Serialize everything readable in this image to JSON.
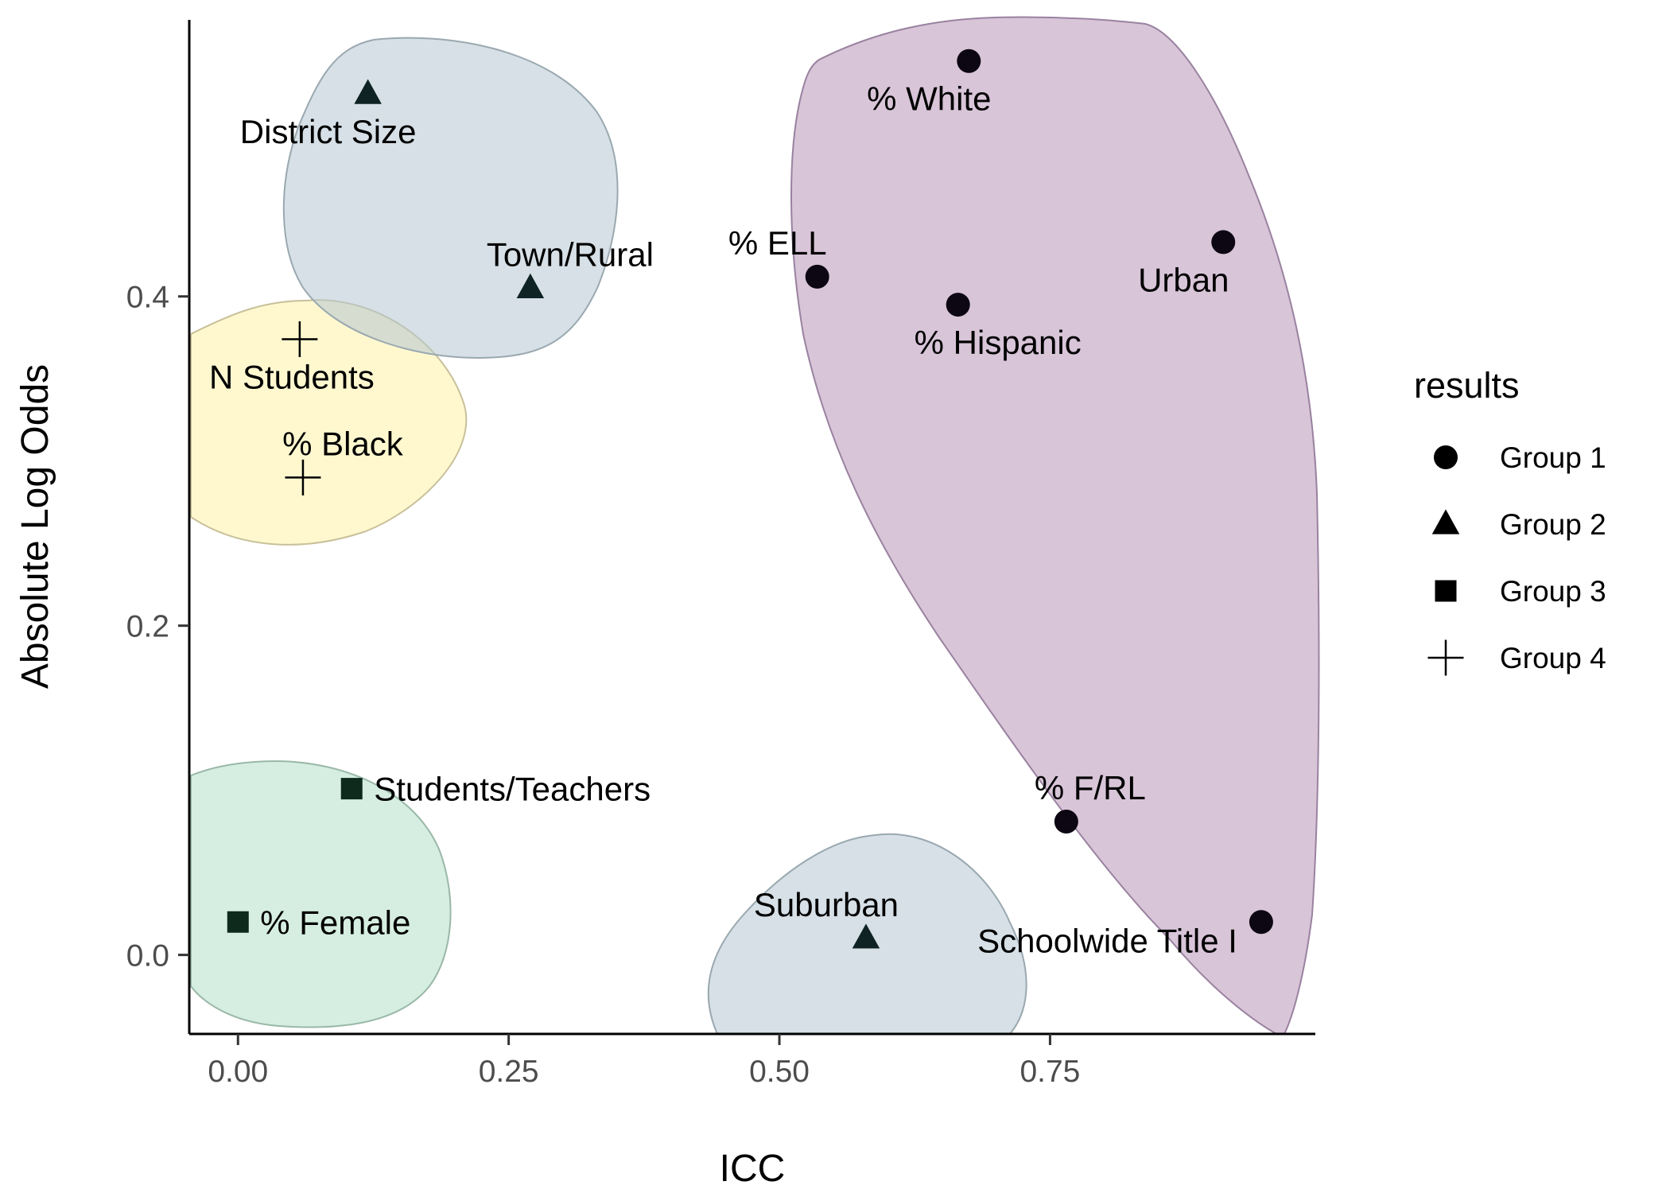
{
  "chart_data": {
    "type": "scatter",
    "xlabel": "ICC",
    "ylabel": "Absolute Log Odds",
    "xlim": [
      -0.045,
      0.995
    ],
    "ylim": [
      -0.048,
      0.568
    ],
    "x_ticks": [
      0.0,
      0.25,
      0.5,
      0.75
    ],
    "x_tick_labels": [
      "0.00",
      "0.25",
      "0.50",
      "0.75"
    ],
    "y_ticks": [
      0.0,
      0.2,
      0.4
    ],
    "y_tick_labels": [
      "0.0",
      "0.2",
      "0.4"
    ],
    "grid": false,
    "legend": {
      "title": "results",
      "placement": "right",
      "entries": [
        {
          "label": "Group 1",
          "shape": "circle"
        },
        {
          "label": "Group 2",
          "shape": "triangle"
        },
        {
          "label": "Group 3",
          "shape": "square"
        },
        {
          "label": "Group 4",
          "shape": "plus"
        }
      ]
    },
    "points": [
      {
        "label": "% White",
        "x": 0.675,
        "y": 0.543,
        "group": "Group 1"
      },
      {
        "label": "Urban",
        "x": 0.91,
        "y": 0.433,
        "group": "Group 1"
      },
      {
        "label": "% ELL",
        "x": 0.535,
        "y": 0.412,
        "group": "Group 1"
      },
      {
        "label": "% Hispanic",
        "x": 0.665,
        "y": 0.395,
        "group": "Group 1"
      },
      {
        "label": "% F/RL",
        "x": 0.765,
        "y": 0.081,
        "group": "Group 1"
      },
      {
        "label": "Schoolwide Title I",
        "x": 0.945,
        "y": 0.02,
        "group": "Group 1"
      },
      {
        "label": "District Size",
        "x": 0.12,
        "y": 0.523,
        "group": "Group 2"
      },
      {
        "label": "Town/Rural",
        "x": 0.27,
        "y": 0.405,
        "group": "Group 2"
      },
      {
        "label": "Suburban",
        "x": 0.58,
        "y": 0.01,
        "group": "Group 2"
      },
      {
        "label": "Students/Teachers",
        "x": 0.105,
        "y": 0.101,
        "group": "Group 3"
      },
      {
        "label": "% Female",
        "x": 0.0,
        "y": 0.02,
        "group": "Group 3"
      },
      {
        "label": "N Students",
        "x": 0.057,
        "y": 0.374,
        "group": "Group 4"
      },
      {
        "label": "% Black",
        "x": 0.06,
        "y": 0.29,
        "group": "Group 4"
      }
    ],
    "hull_colors": {
      "Group 1": "#b896b8",
      "Group 2": "#b4c7d1",
      "Group 3": "#b2e0c8",
      "Group 4": "#fff2a8"
    },
    "point_colors": {
      "Group 1": "#0c0712",
      "Group 2": "#0f2325",
      "Group 3": "#0d2a1c",
      "Group 4": "#000000"
    }
  }
}
